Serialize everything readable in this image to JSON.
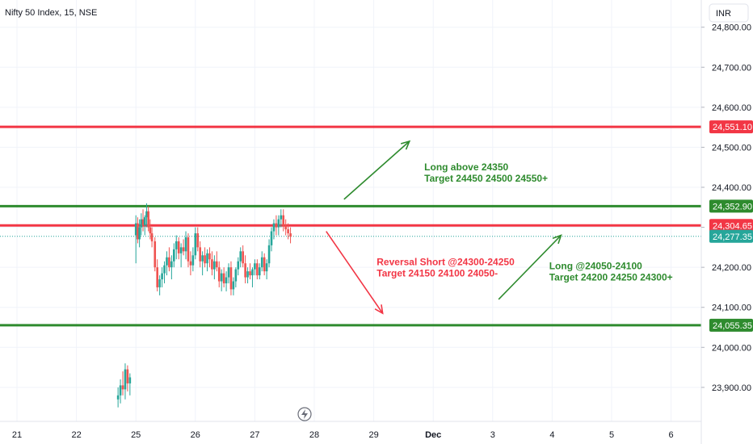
{
  "header": {
    "title": "Nifty 50 Index, 15, NSE",
    "currency": "INR"
  },
  "colors": {
    "red": "#f23645",
    "green": "#2e8b2e",
    "up": "#26a69a",
    "down": "#ef5350",
    "grid": "#f0f3fa",
    "axis_text": "#131722",
    "current": "#26a69a"
  },
  "chart_data": {
    "type": "candlestick",
    "title": "Nifty 50 Index, 15, NSE",
    "ylim": [
      23815,
      24868
    ],
    "y_ticks": [
      23900,
      24000,
      24100,
      24200,
      24300,
      24400,
      24500,
      24600,
      24700,
      24800
    ],
    "y_tick_labels": [
      "23,900.00",
      "24,000.00",
      "24,100.00",
      "24,200.00",
      "24,300.00",
      "24,400.00",
      "24,500.00",
      "24,600.00",
      "24,700.00",
      "24,800.00"
    ],
    "x_ticks": [
      "21",
      "22",
      "25",
      "26",
      "27",
      "28",
      "29",
      "Dec",
      "3",
      "4",
      "5",
      "6"
    ],
    "x_tick_positions": [
      0,
      1,
      2,
      3,
      4,
      5,
      6,
      7,
      8,
      9,
      10,
      11
    ],
    "xlim": [
      -0.05,
      11.85
    ],
    "horizontal_levels": [
      {
        "value": 24551.1,
        "label": "24,551.10",
        "color": "red"
      },
      {
        "value": 24352.9,
        "label": "24,352.90",
        "color": "green"
      },
      {
        "value": 24304.65,
        "label": "24,304.65",
        "color": "red"
      },
      {
        "value": 24055.35,
        "label": "24,055.35",
        "color": "green"
      }
    ],
    "current_price": {
      "value": 24277.35,
      "label": "24,277.35"
    },
    "annotations": [
      {
        "lines": [
          "Long above 24350",
          "Target 24450 24500 24550+"
        ],
        "color": "green",
        "x": 6.85,
        "y": 24442
      },
      {
        "lines": [
          "Reversal Short @24300-24250",
          "Target 24150 24100 24050-"
        ],
        "color": "red",
        "x": 6.05,
        "y": 24205
      },
      {
        "lines": [
          "Long @24050-24100",
          "Target 24200 24250 24300+"
        ],
        "color": "green",
        "x": 8.95,
        "y": 24195
      }
    ],
    "arrows": [
      {
        "from": [
          5.5,
          24370
        ],
        "to": [
          6.6,
          24515
        ],
        "color": "green"
      },
      {
        "from": [
          5.2,
          24290
        ],
        "to": [
          6.15,
          24085
        ],
        "color": "red"
      },
      {
        "from": [
          8.1,
          24120
        ],
        "to": [
          9.15,
          24280
        ],
        "color": "green"
      }
    ],
    "candles_day22": [
      [
        1.7,
        23870,
        23900,
        23850,
        23880
      ],
      [
        1.74,
        23880,
        23920,
        23860,
        23905
      ],
      [
        1.78,
        23905,
        23940,
        23880,
        23895
      ],
      [
        1.82,
        23895,
        23960,
        23870,
        23945
      ],
      [
        1.86,
        23945,
        23955,
        23890,
        23910
      ],
      [
        1.9,
        23910,
        23935,
        23880,
        23925
      ]
    ],
    "candles": [
      [
        2.0,
        24280,
        24330,
        24210,
        24310
      ],
      [
        2.03,
        24310,
        24325,
        24260,
        24270
      ],
      [
        2.06,
        24270,
        24320,
        24250,
        24300
      ],
      [
        2.09,
        24300,
        24335,
        24280,
        24320
      ],
      [
        2.12,
        24320,
        24345,
        24290,
        24305
      ],
      [
        2.15,
        24305,
        24330,
        24280,
        24325
      ],
      [
        2.18,
        24325,
        24360,
        24300,
        24340
      ],
      [
        2.21,
        24340,
        24352,
        24290,
        24300
      ],
      [
        2.24,
        24300,
        24320,
        24270,
        24285
      ],
      [
        2.27,
        24285,
        24300,
        24250,
        24265
      ],
      [
        2.32,
        24265,
        24275,
        24190,
        24200
      ],
      [
        2.36,
        24200,
        24220,
        24140,
        24150
      ],
      [
        2.4,
        24150,
        24180,
        24130,
        24170
      ],
      [
        2.44,
        24170,
        24200,
        24150,
        24185
      ],
      [
        2.48,
        24185,
        24215,
        24160,
        24205
      ],
      [
        2.52,
        24205,
        24240,
        24180,
        24225
      ],
      [
        2.56,
        24225,
        24250,
        24190,
        24200
      ],
      [
        2.6,
        24200,
        24230,
        24170,
        24215
      ],
      [
        2.64,
        24215,
        24260,
        24200,
        24245
      ],
      [
        2.68,
        24245,
        24280,
        24220,
        24265
      ],
      [
        2.72,
        24265,
        24275,
        24220,
        24235
      ],
      [
        2.76,
        24235,
        24260,
        24200,
        24250
      ],
      [
        2.8,
        24250,
        24270,
        24230,
        24240
      ],
      [
        2.84,
        24240,
        24290,
        24220,
        24275
      ],
      [
        2.88,
        24275,
        24285,
        24200,
        24215
      ],
      [
        2.92,
        24215,
        24240,
        24180,
        24205
      ],
      [
        2.96,
        24205,
        24250,
        24190,
        24230
      ],
      [
        3.0,
        24230,
        24300,
        24220,
        24285
      ],
      [
        3.04,
        24285,
        24300,
        24240,
        24250
      ],
      [
        3.08,
        24250,
        24265,
        24200,
        24215
      ],
      [
        3.12,
        24215,
        24240,
        24180,
        24230
      ],
      [
        3.16,
        24230,
        24250,
        24200,
        24210
      ],
      [
        3.2,
        24210,
        24245,
        24190,
        24235
      ],
      [
        3.24,
        24235,
        24250,
        24200,
        24220
      ],
      [
        3.28,
        24220,
        24240,
        24180,
        24195
      ],
      [
        3.32,
        24195,
        24230,
        24170,
        24215
      ],
      [
        3.36,
        24215,
        24240,
        24190,
        24200
      ],
      [
        3.4,
        24200,
        24215,
        24150,
        24165
      ],
      [
        3.44,
        24165,
        24195,
        24140,
        24185
      ],
      [
        3.48,
        24185,
        24200,
        24150,
        24160
      ],
      [
        3.52,
        24160,
        24190,
        24140,
        24175
      ],
      [
        3.56,
        24175,
        24210,
        24160,
        24200
      ],
      [
        3.6,
        24200,
        24215,
        24130,
        24145
      ],
      [
        3.64,
        24145,
        24175,
        24130,
        24165
      ],
      [
        3.68,
        24165,
        24200,
        24150,
        24195
      ],
      [
        3.72,
        24195,
        24225,
        24180,
        24215
      ],
      [
        3.76,
        24215,
        24250,
        24200,
        24240
      ],
      [
        3.8,
        24240,
        24255,
        24200,
        24210
      ],
      [
        3.84,
        24210,
        24230,
        24160,
        24175
      ],
      [
        3.88,
        24175,
        24200,
        24160,
        24190
      ],
      [
        3.92,
        24190,
        24210,
        24170,
        24180
      ],
      [
        3.96,
        24180,
        24200,
        24150,
        24195
      ],
      [
        4.0,
        24195,
        24220,
        24180,
        24210
      ],
      [
        4.04,
        24210,
        24220,
        24170,
        24180
      ],
      [
        4.08,
        24180,
        24210,
        24170,
        24200
      ],
      [
        4.12,
        24200,
        24240,
        24190,
        24225
      ],
      [
        4.16,
        24225,
        24235,
        24180,
        24190
      ],
      [
        4.2,
        24190,
        24220,
        24170,
        24210
      ],
      [
        4.24,
        24210,
        24270,
        24200,
        24255
      ],
      [
        4.28,
        24255,
        24300,
        24240,
        24290
      ],
      [
        4.32,
        24290,
        24320,
        24270,
        24310
      ],
      [
        4.36,
        24310,
        24330,
        24280,
        24300
      ],
      [
        4.4,
        24300,
        24330,
        24280,
        24320
      ],
      [
        4.44,
        24320,
        24345,
        24300,
        24330
      ],
      [
        4.48,
        24330,
        24345,
        24290,
        24305
      ],
      [
        4.52,
        24305,
        24320,
        24280,
        24295
      ],
      [
        4.56,
        24295,
        24310,
        24270,
        24285
      ],
      [
        4.6,
        24285,
        24300,
        24260,
        24277
      ]
    ]
  }
}
